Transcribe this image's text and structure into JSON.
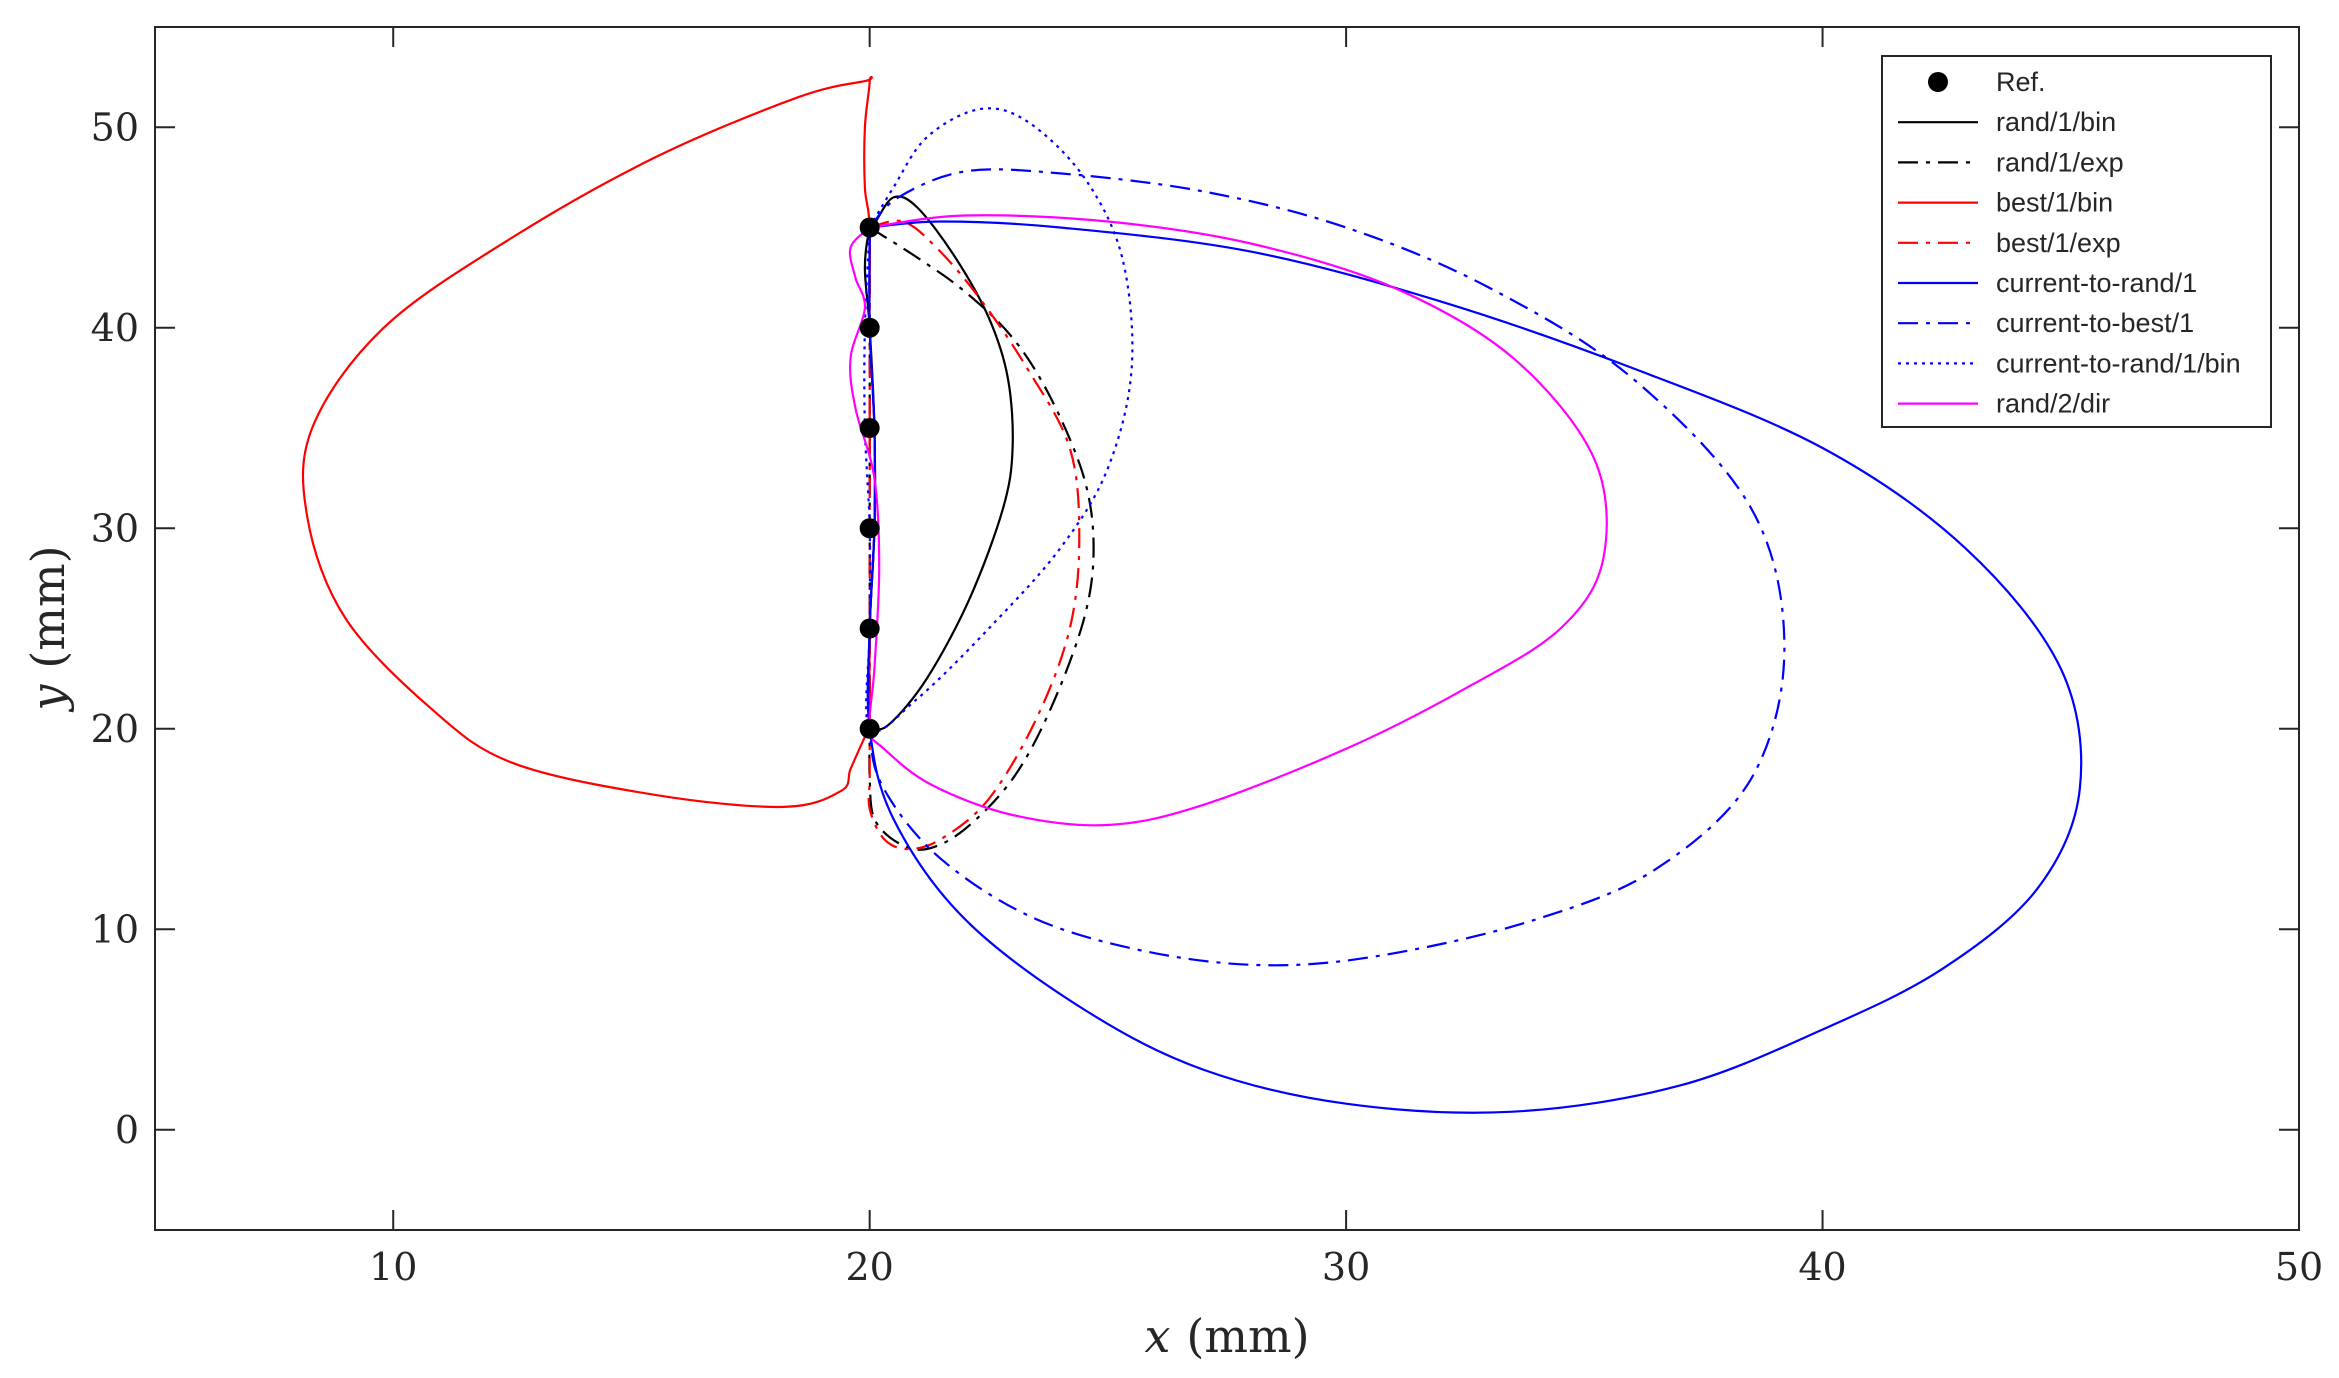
{
  "chart_data": {
    "type": "line",
    "xlabel_var": "x",
    "xlabel_unit": "(mm)",
    "ylabel_var": "y",
    "ylabel_unit": "(mm)",
    "xlim": [
      5,
      50
    ],
    "ylim": [
      -5,
      55
    ],
    "xticks": [
      10,
      20,
      30,
      40,
      50
    ],
    "yticks": [
      0,
      10,
      20,
      30,
      40,
      50
    ],
    "grid": false,
    "legend_position": "top-right",
    "reference": {
      "name": "Ref.",
      "color": "#000000",
      "points": [
        [
          20,
          20
        ],
        [
          20,
          25
        ],
        [
          20,
          30
        ],
        [
          20,
          35
        ],
        [
          20,
          40
        ],
        [
          20,
          45
        ]
      ]
    },
    "series": [
      {
        "name": "rand/1/bin",
        "color": "#000000",
        "style": "solid",
        "points": [
          [
            20,
            20
          ],
          [
            20.4,
            20.2
          ],
          [
            21.2,
            22.5
          ],
          [
            22.1,
            26.5
          ],
          [
            22.8,
            31
          ],
          [
            23,
            34
          ],
          [
            22.9,
            37.5
          ],
          [
            22.5,
            40.5
          ],
          [
            21.8,
            43.5
          ],
          [
            21,
            46
          ],
          [
            20.5,
            46.5
          ],
          [
            20.1,
            45.2
          ],
          [
            20,
            45
          ],
          [
            19.9,
            43
          ],
          [
            20,
            40
          ],
          [
            20.1,
            35
          ],
          [
            20.1,
            30
          ],
          [
            20,
            25
          ],
          [
            20,
            20
          ]
        ]
      },
      {
        "name": "rand/1/exp",
        "color": "#000000",
        "style": "dashdot",
        "points": [
          [
            20,
            45
          ],
          [
            21,
            43.5
          ],
          [
            22,
            41.8
          ],
          [
            23,
            39.5
          ],
          [
            23.8,
            36.5
          ],
          [
            24.5,
            32.5
          ],
          [
            24.7,
            29
          ],
          [
            24.5,
            25.5
          ],
          [
            23.8,
            21
          ],
          [
            23,
            17.5
          ],
          [
            22,
            15
          ],
          [
            21.2,
            14
          ],
          [
            20.6,
            14.3
          ],
          [
            20.1,
            15.5
          ],
          [
            20,
            17.5
          ],
          [
            20,
            20
          ],
          [
            20,
            25
          ],
          [
            20,
            30
          ],
          [
            20,
            35
          ],
          [
            20,
            40
          ],
          [
            20,
            45
          ]
        ]
      },
      {
        "name": "best/1/bin",
        "color": "#ff0000",
        "style": "solid",
        "points": [
          [
            20,
            20
          ],
          [
            19.9,
            19.6
          ],
          [
            19.6,
            18
          ],
          [
            19.4,
            16.9
          ],
          [
            18.2,
            16.1
          ],
          [
            15.5,
            16.7
          ],
          [
            12.5,
            18.3
          ],
          [
            10.8,
            21
          ],
          [
            9,
            25.5
          ],
          [
            8.2,
            30.5
          ],
          [
            8.3,
            35
          ],
          [
            9.8,
            40
          ],
          [
            12.5,
            44.5
          ],
          [
            15.5,
            48.5
          ],
          [
            18.5,
            51.5
          ],
          [
            19.9,
            52.3
          ],
          [
            20,
            52.3
          ],
          [
            19.9,
            50
          ],
          [
            19.9,
            47
          ],
          [
            20,
            45
          ],
          [
            20,
            40
          ],
          [
            20.1,
            35
          ],
          [
            20.1,
            30
          ],
          [
            20,
            25
          ],
          [
            20,
            20
          ]
        ]
      },
      {
        "name": "best/1/exp",
        "color": "#ff0000",
        "style": "dashdot",
        "points": [
          [
            20,
            45
          ],
          [
            20.7,
            45.3
          ],
          [
            21.4,
            44
          ],
          [
            22.3,
            41.5
          ],
          [
            23.3,
            38
          ],
          [
            24.2,
            34
          ],
          [
            24.4,
            29.5
          ],
          [
            24.2,
            25
          ],
          [
            23.5,
            20.5
          ],
          [
            22.5,
            16.5
          ],
          [
            21.5,
            14.5
          ],
          [
            20.8,
            14
          ],
          [
            20.3,
            14.5
          ],
          [
            20,
            16
          ],
          [
            20,
            17.5
          ],
          [
            20,
            20
          ],
          [
            20,
            25
          ],
          [
            20,
            30
          ],
          [
            20,
            35
          ],
          [
            20,
            40
          ],
          [
            20,
            45
          ]
        ]
      },
      {
        "name": "current-to-rand/1",
        "color": "#0000ff",
        "style": "solid",
        "points": [
          [
            20,
            45
          ],
          [
            21.5,
            45.3
          ],
          [
            24,
            45
          ],
          [
            28,
            43.8
          ],
          [
            32,
            41.3
          ],
          [
            36,
            38
          ],
          [
            40,
            34
          ],
          [
            43,
            29
          ],
          [
            45,
            23
          ],
          [
            45.4,
            17
          ],
          [
            44.5,
            12
          ],
          [
            42.5,
            8
          ],
          [
            40,
            5
          ],
          [
            37,
            2.2
          ],
          [
            33.5,
            0.9
          ],
          [
            30,
            1.3
          ],
          [
            27,
            3
          ],
          [
            24.5,
            6
          ],
          [
            22,
            10.5
          ],
          [
            20.5,
            15.5
          ],
          [
            20,
            20
          ],
          [
            20,
            25
          ],
          [
            20.1,
            30
          ],
          [
            20.1,
            35
          ],
          [
            20,
            40
          ],
          [
            20,
            45
          ]
        ]
      },
      {
        "name": "current-to-best/1",
        "color": "#0000ff",
        "style": "dashdot",
        "points": [
          [
            20,
            45
          ],
          [
            20.6,
            46.5
          ],
          [
            22,
            47.8
          ],
          [
            24,
            47.7
          ],
          [
            27,
            46.8
          ],
          [
            30,
            45
          ],
          [
            33,
            42
          ],
          [
            36,
            37.5
          ],
          [
            38.5,
            31
          ],
          [
            39.2,
            24
          ],
          [
            38.5,
            17.5
          ],
          [
            36.5,
            13
          ],
          [
            34,
            10.5
          ],
          [
            31,
            8.8
          ],
          [
            28.5,
            8.2
          ],
          [
            26,
            8.8
          ],
          [
            23.5,
            10.5
          ],
          [
            21.5,
            13.5
          ],
          [
            20.3,
            17
          ],
          [
            20,
            20
          ],
          [
            20,
            25
          ],
          [
            20.1,
            30
          ],
          [
            20.1,
            35
          ],
          [
            20,
            40
          ],
          [
            20,
            45
          ]
        ]
      },
      {
        "name": "current-to-rand/1/bin",
        "color": "#0000ff",
        "style": "dotted",
        "points": [
          [
            20,
            45
          ],
          [
            20.5,
            47
          ],
          [
            21.2,
            49.5
          ],
          [
            22.3,
            50.9
          ],
          [
            23.3,
            50.3
          ],
          [
            24.5,
            47.5
          ],
          [
            25.3,
            43.5
          ],
          [
            25.5,
            38
          ],
          [
            25,
            33
          ],
          [
            24,
            29
          ],
          [
            22.5,
            25
          ],
          [
            21,
            21.5
          ],
          [
            20,
            20
          ],
          [
            20,
            25
          ],
          [
            20,
            30
          ],
          [
            19.9,
            35
          ],
          [
            19.9,
            40
          ],
          [
            20,
            45
          ]
        ]
      },
      {
        "name": "rand/2/dir",
        "color": "#ff00ff",
        "style": "solid",
        "points": [
          [
            20,
            45
          ],
          [
            22,
            45.6
          ],
          [
            25,
            45.3
          ],
          [
            28,
            44.2
          ],
          [
            31,
            42
          ],
          [
            33.5,
            38.5
          ],
          [
            35.2,
            33.5
          ],
          [
            35.4,
            28.5
          ],
          [
            34.5,
            25
          ],
          [
            32.5,
            22
          ],
          [
            30,
            19
          ],
          [
            27,
            16.2
          ],
          [
            25,
            15.2
          ],
          [
            23,
            15.7
          ],
          [
            21.3,
            17.2
          ],
          [
            20.3,
            19
          ],
          [
            20,
            20
          ],
          [
            20.1,
            23
          ],
          [
            20.2,
            28
          ],
          [
            20.1,
            32.5
          ],
          [
            19.7,
            36
          ],
          [
            19.6,
            38.5
          ],
          [
            19.9,
            41
          ],
          [
            19.7,
            42.5
          ],
          [
            19.6,
            44
          ],
          [
            20,
            45
          ]
        ]
      }
    ]
  }
}
